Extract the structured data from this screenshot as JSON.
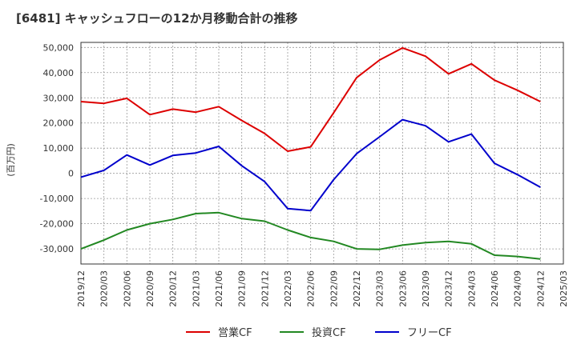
{
  "title": "[6481]  キャッシュフローの12か月移動合計の推移",
  "chart_data": {
    "type": "line",
    "title": "[6481]  キャッシュフローの12か月移動合計の推移",
    "xlabel": "",
    "ylabel": "(百万円)",
    "ylim": [
      -36000,
      52000
    ],
    "yticks": [
      50000,
      40000,
      30000,
      20000,
      10000,
      0,
      -10000,
      -20000,
      -30000
    ],
    "ytick_labels": [
      "50,000",
      "40,000",
      "30,000",
      "20,000",
      "10,000",
      "0",
      "-10,000",
      "-20,000",
      "-30,000"
    ],
    "xticks": [
      "2019/12",
      "2020/03",
      "2020/06",
      "2020/09",
      "2020/12",
      "2021/03",
      "2021/06",
      "2021/09",
      "2021/12",
      "2022/03",
      "2022/06",
      "2022/09",
      "2022/12",
      "2023/03",
      "2023/06",
      "2023/09",
      "2023/12",
      "2024/03",
      "2024/06",
      "2024/09",
      "2024/12",
      "2025/03"
    ],
    "grid": true,
    "legend_position": "bottom",
    "series": [
      {
        "name": "営業CF",
        "color": "#dd0000",
        "values": [
          28500,
          27800,
          29800,
          23300,
          25500,
          24300,
          26500,
          21000,
          15800,
          8800,
          10500,
          24000,
          38000,
          45000,
          49800,
          46500,
          39500,
          43500,
          37000,
          33000,
          28500
        ]
      },
      {
        "name": "投資CF",
        "color": "#228822",
        "values": [
          -30000,
          -26500,
          -22500,
          -20000,
          -18300,
          -16000,
          -15600,
          -18000,
          -19000,
          -22500,
          -25500,
          -27000,
          -30000,
          -30200,
          -28500,
          -27500,
          -27000,
          -28000,
          -32500,
          -33000,
          -34000
        ]
      },
      {
        "name": "フリーCF",
        "color": "#0000cc",
        "values": [
          -1500,
          1200,
          7300,
          3300,
          7100,
          8100,
          10700,
          3000,
          -3300,
          -14000,
          -14800,
          -2500,
          7800,
          14500,
          21300,
          18900,
          12500,
          15600,
          4000,
          -500,
          -5500
        ]
      }
    ]
  }
}
